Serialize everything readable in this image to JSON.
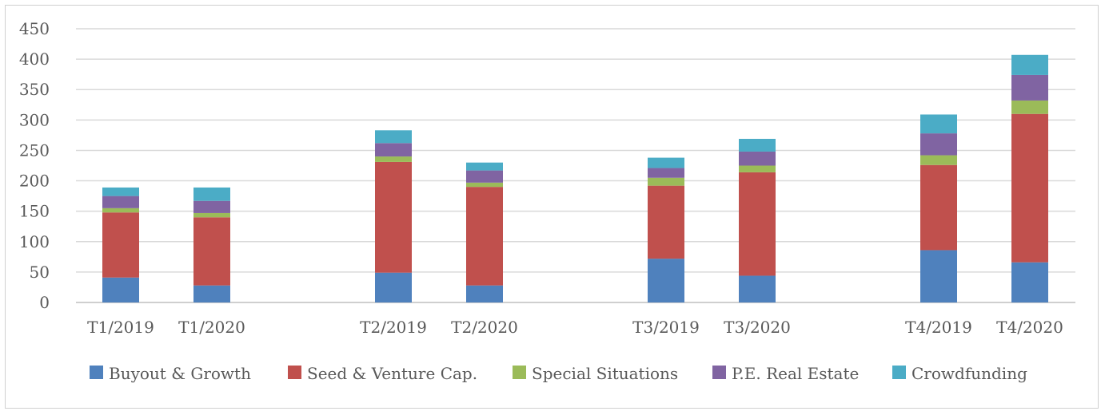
{
  "chart_data": {
    "type": "bar",
    "stacked": true,
    "title": "",
    "xlabel": "",
    "ylabel": "",
    "ylim": [
      0,
      450
    ],
    "yticks": [
      0,
      50,
      100,
      150,
      200,
      250,
      300,
      350,
      400,
      450
    ],
    "grid": true,
    "legend_position": "bottom",
    "categories": [
      "T1/2019",
      "T1/2020",
      "T2/2019",
      "T2/2020",
      "T3/2019",
      "T3/2020",
      "T4/2019",
      "T4/2020"
    ],
    "series": [
      {
        "name": "Buyout & Growth",
        "color": "#4f81bd",
        "values": [
          41,
          28,
          49,
          28,
          72,
          44,
          86,
          66
        ]
      },
      {
        "name": "Seed & Venture Cap.",
        "color": "#c0504d",
        "values": [
          107,
          112,
          182,
          162,
          120,
          170,
          140,
          244
        ]
      },
      {
        "name": "Special Situations",
        "color": "#9bbb59",
        "values": [
          7,
          7,
          9,
          7,
          13,
          11,
          16,
          22
        ]
      },
      {
        "name": "P.E. Real Estate",
        "color": "#8064a2",
        "values": [
          20,
          20,
          22,
          20,
          16,
          23,
          36,
          42
        ]
      },
      {
        "name": "Crowdfunding",
        "color": "#4bacc6",
        "values": [
          14,
          22,
          21,
          13,
          17,
          21,
          31,
          33
        ]
      }
    ]
  }
}
